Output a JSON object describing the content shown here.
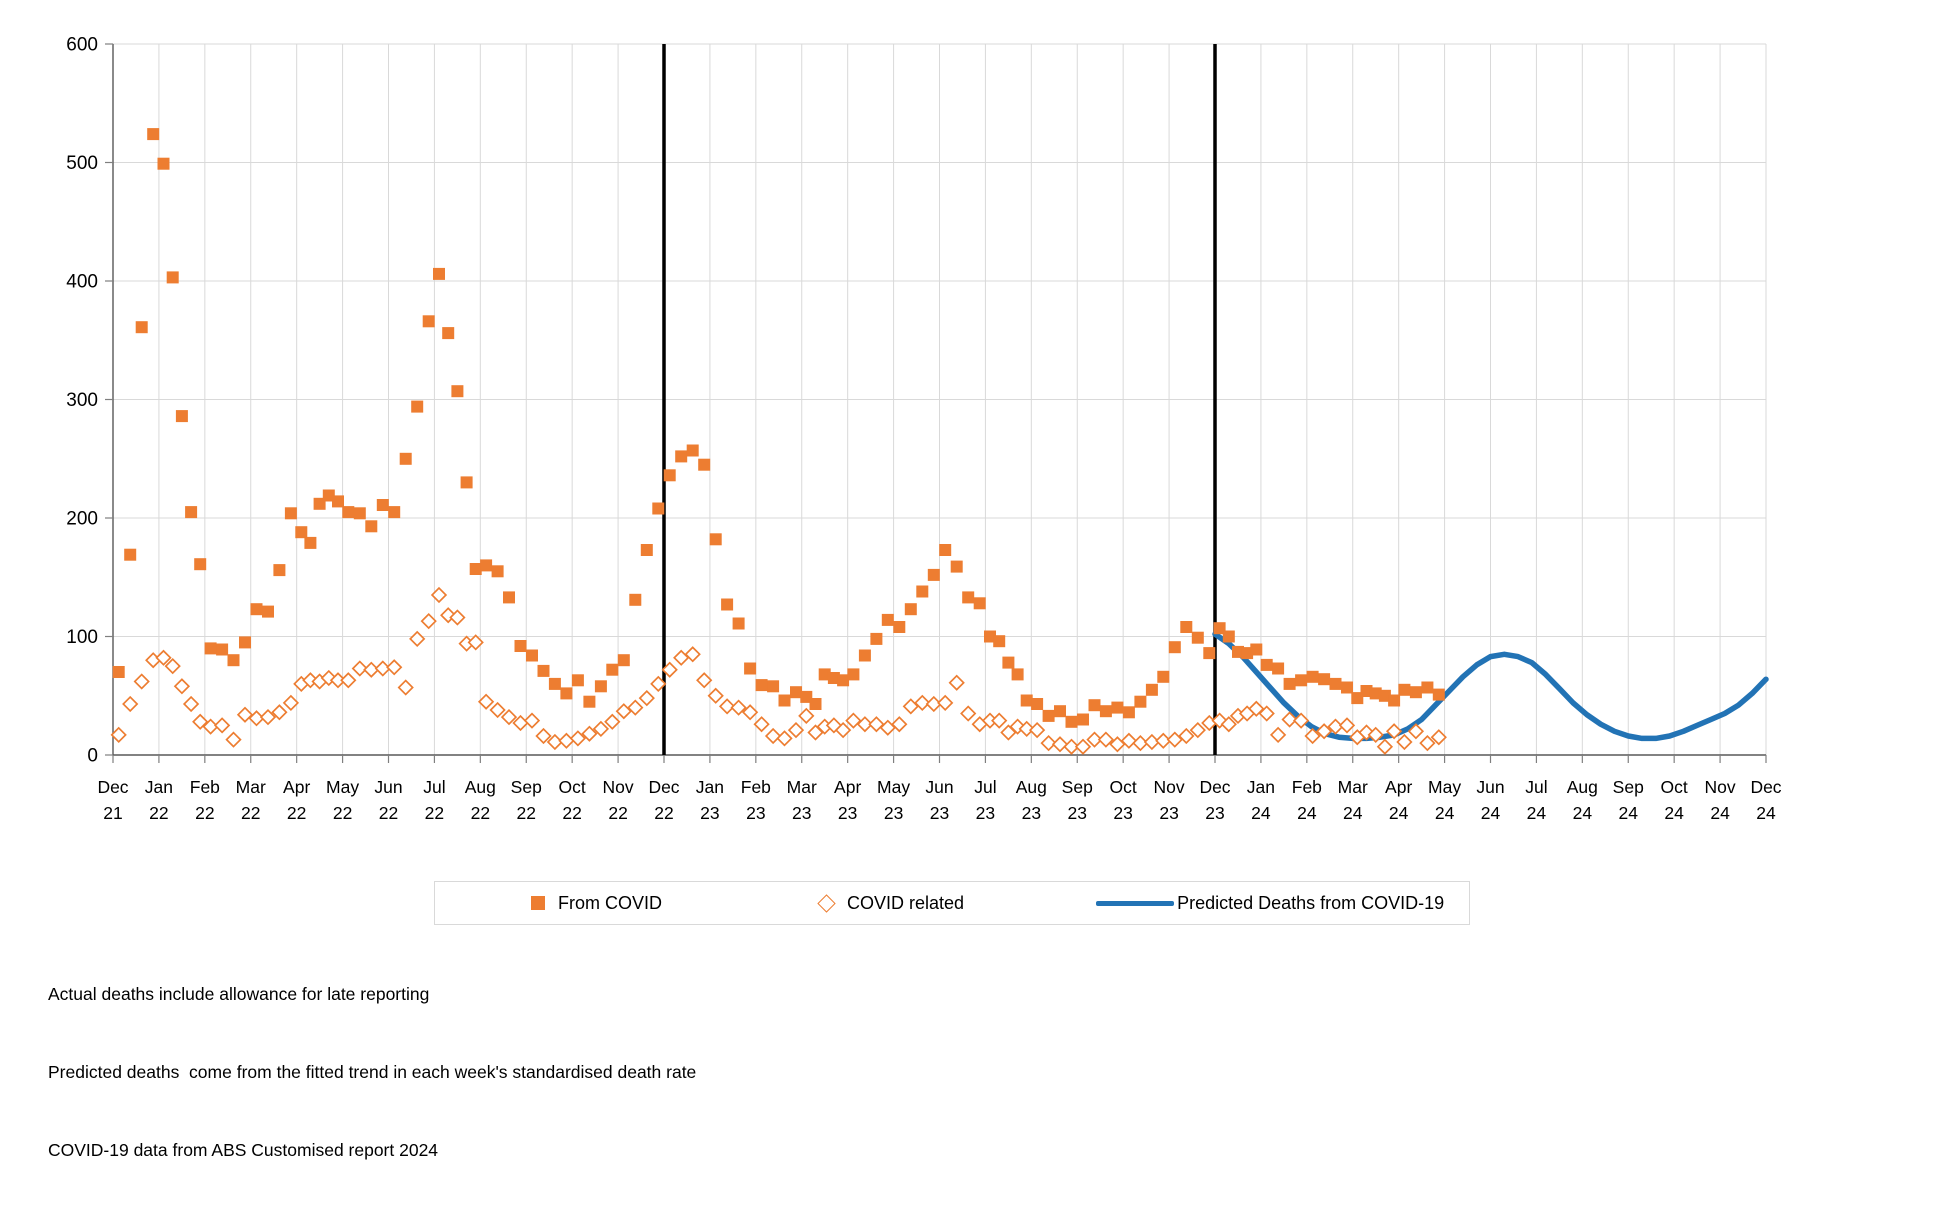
{
  "chart_data": {
    "type": "scatter",
    "title": "",
    "grid": true,
    "background": "#ffffff",
    "colors": {
      "actual_orange": "#ED7D31",
      "predicted_blue": "#2273B5",
      "event_line_black": "#000000",
      "gridline_gray": "#D9D9D9",
      "axis_gray": "#595959"
    },
    "y_axis": {
      "min": 0,
      "max": 600,
      "step": 100,
      "ticks": [
        0,
        100,
        200,
        300,
        400,
        500,
        600
      ]
    },
    "x_axis": {
      "labels": [
        [
          "Dec",
          "21"
        ],
        [
          "Jan",
          "22"
        ],
        [
          "Feb",
          "22"
        ],
        [
          "Mar",
          "22"
        ],
        [
          "Apr",
          "22"
        ],
        [
          "May",
          "22"
        ],
        [
          "Jun",
          "22"
        ],
        [
          "Jul",
          "22"
        ],
        [
          "Aug",
          "22"
        ],
        [
          "Sep",
          "22"
        ],
        [
          "Oct",
          "22"
        ],
        [
          "Nov",
          "22"
        ],
        [
          "Dec",
          "22"
        ],
        [
          "Jan",
          "23"
        ],
        [
          "Feb",
          "23"
        ],
        [
          "Mar",
          "23"
        ],
        [
          "Apr",
          "23"
        ],
        [
          "May",
          "23"
        ],
        [
          "Jun",
          "23"
        ],
        [
          "Jul",
          "23"
        ],
        [
          "Aug",
          "23"
        ],
        [
          "Sep",
          "23"
        ],
        [
          "Oct",
          "23"
        ],
        [
          "Nov",
          "23"
        ],
        [
          "Dec",
          "23"
        ],
        [
          "Jan",
          "24"
        ],
        [
          "Feb",
          "24"
        ],
        [
          "Mar",
          "24"
        ],
        [
          "Apr",
          "24"
        ],
        [
          "May",
          "24"
        ],
        [
          "Jun",
          "24"
        ],
        [
          "Jul",
          "24"
        ],
        [
          "Aug",
          "24"
        ],
        [
          "Sep",
          "24"
        ],
        [
          "Oct",
          "24"
        ],
        [
          "Nov",
          "24"
        ],
        [
          "Dec",
          "24"
        ]
      ]
    },
    "event_lines": {
      "color": "#000000",
      "at_label_indexes": [
        12,
        24
      ]
    },
    "series": {
      "from_covid": {
        "name": "From COVID",
        "marker": "filled-square",
        "color": "#ED7D31",
        "start_month": "Dec 21",
        "end_month": "Apr 24",
        "weekly_by_month": [
          [
            70,
            169,
            361,
            524
          ],
          [
            499,
            403,
            286,
            205,
            161
          ],
          [
            90,
            89,
            80,
            95
          ],
          [
            123,
            121,
            156,
            204
          ],
          [
            188,
            179,
            212,
            219,
            214
          ],
          [
            205,
            204,
            193,
            211
          ],
          [
            205,
            250,
            294,
            366
          ],
          [
            406,
            356,
            307,
            230,
            157
          ],
          [
            160,
            155,
            133,
            92
          ],
          [
            84,
            71,
            60,
            52
          ],
          [
            63,
            45,
            58,
            72
          ],
          [
            80,
            131,
            173,
            208
          ],
          [
            236,
            252,
            257,
            245
          ],
          [
            182,
            127,
            111,
            73
          ],
          [
            59,
            58,
            46,
            53
          ],
          [
            49,
            43,
            68,
            65,
            63
          ],
          [
            68,
            84,
            98,
            114
          ],
          [
            108,
            123,
            138,
            152
          ],
          [
            173,
            159,
            133,
            128
          ],
          [
            100,
            96,
            78,
            68,
            46
          ],
          [
            43,
            33,
            37,
            28
          ],
          [
            30,
            42,
            37,
            40
          ],
          [
            36,
            45,
            55,
            66
          ],
          [
            91,
            108,
            99,
            86
          ],
          [
            107,
            100,
            87,
            86,
            89
          ],
          [
            76,
            73,
            60,
            63
          ],
          [
            66,
            64,
            60,
            57
          ],
          [
            48,
            54,
            52,
            50,
            46
          ],
          [
            55,
            53,
            57,
            51
          ]
        ]
      },
      "covid_related": {
        "name": "COVID related",
        "marker": "open-diamond",
        "color": "#ED7D31",
        "start_month": "Dec 21",
        "end_month": "Apr 24",
        "weekly_by_month": [
          [
            17,
            43,
            62,
            80
          ],
          [
            82,
            75,
            58,
            43,
            28
          ],
          [
            24,
            25,
            13,
            34
          ],
          [
            31,
            32,
            36,
            44
          ],
          [
            60,
            63,
            62,
            65,
            63
          ],
          [
            63,
            73,
            72,
            73
          ],
          [
            74,
            57,
            98,
            113
          ],
          [
            135,
            118,
            116,
            94,
            95
          ],
          [
            45,
            38,
            32,
            27
          ],
          [
            29,
            16,
            11,
            12
          ],
          [
            14,
            18,
            22,
            28
          ],
          [
            37,
            40,
            48,
            60
          ],
          [
            72,
            82,
            85,
            63
          ],
          [
            50,
            41,
            40,
            36
          ],
          [
            26,
            16,
            14,
            21
          ],
          [
            33,
            19,
            24,
            25,
            21
          ],
          [
            29,
            26,
            26,
            23
          ],
          [
            26,
            41,
            44,
            43
          ],
          [
            44,
            61,
            35,
            26
          ],
          [
            29,
            29,
            19,
            24,
            22
          ],
          [
            21,
            10,
            9,
            7
          ],
          [
            7,
            13,
            13,
            9
          ],
          [
            12,
            10,
            11,
            12
          ],
          [
            13,
            16,
            21,
            27
          ],
          [
            29,
            26,
            33,
            35,
            39
          ],
          [
            35,
            17,
            30,
            29
          ],
          [
            16,
            20,
            24,
            25
          ],
          [
            15,
            19,
            17,
            7,
            20
          ],
          [
            11,
            20,
            10,
            15
          ]
        ]
      },
      "predicted": {
        "name": "Predicted Deaths from COVID-19",
        "marker": "line",
        "color": "#2273B5",
        "start_month": "Dec 23",
        "end_month": "Dec 24",
        "points_month_value": [
          [
            24.0,
            102
          ],
          [
            24.3,
            94
          ],
          [
            24.6,
            83
          ],
          [
            24.9,
            70
          ],
          [
            25.2,
            57
          ],
          [
            25.5,
            44
          ],
          [
            25.8,
            33
          ],
          [
            26.1,
            24
          ],
          [
            26.4,
            18
          ],
          [
            26.7,
            15
          ],
          [
            27.0,
            14
          ],
          [
            27.3,
            14
          ],
          [
            27.6,
            15
          ],
          [
            27.9,
            17
          ],
          [
            28.2,
            22
          ],
          [
            28.5,
            30
          ],
          [
            28.8,
            42
          ],
          [
            29.1,
            54
          ],
          [
            29.4,
            66
          ],
          [
            29.7,
            76
          ],
          [
            30.0,
            83
          ],
          [
            30.3,
            85
          ],
          [
            30.6,
            83
          ],
          [
            30.9,
            78
          ],
          [
            31.2,
            68
          ],
          [
            31.5,
            56
          ],
          [
            31.8,
            44
          ],
          [
            32.1,
            34
          ],
          [
            32.4,
            26
          ],
          [
            32.7,
            20
          ],
          [
            33.0,
            16
          ],
          [
            33.3,
            14
          ],
          [
            33.6,
            14
          ],
          [
            33.9,
            16
          ],
          [
            34.2,
            20
          ],
          [
            34.5,
            25
          ],
          [
            34.8,
            30
          ],
          [
            35.1,
            35
          ],
          [
            35.4,
            42
          ],
          [
            35.7,
            52
          ],
          [
            36.0,
            64
          ]
        ]
      }
    }
  },
  "legend": {
    "items": [
      {
        "label": "From COVID",
        "marker": "filled-square",
        "color": "#ED7D31"
      },
      {
        "label": "COVID related",
        "marker": "open-diamond",
        "color": "#ED7D31"
      },
      {
        "label": "Predicted Deaths from COVID-19",
        "marker": "line",
        "color": "#2273B5"
      }
    ]
  },
  "footnotes": [
    "Actual deaths include allowance for late reporting",
    "Predicted deaths  come from the fitted trend in each week's standardised death rate",
    "COVID-19 data from ABS Customised report 2024"
  ]
}
